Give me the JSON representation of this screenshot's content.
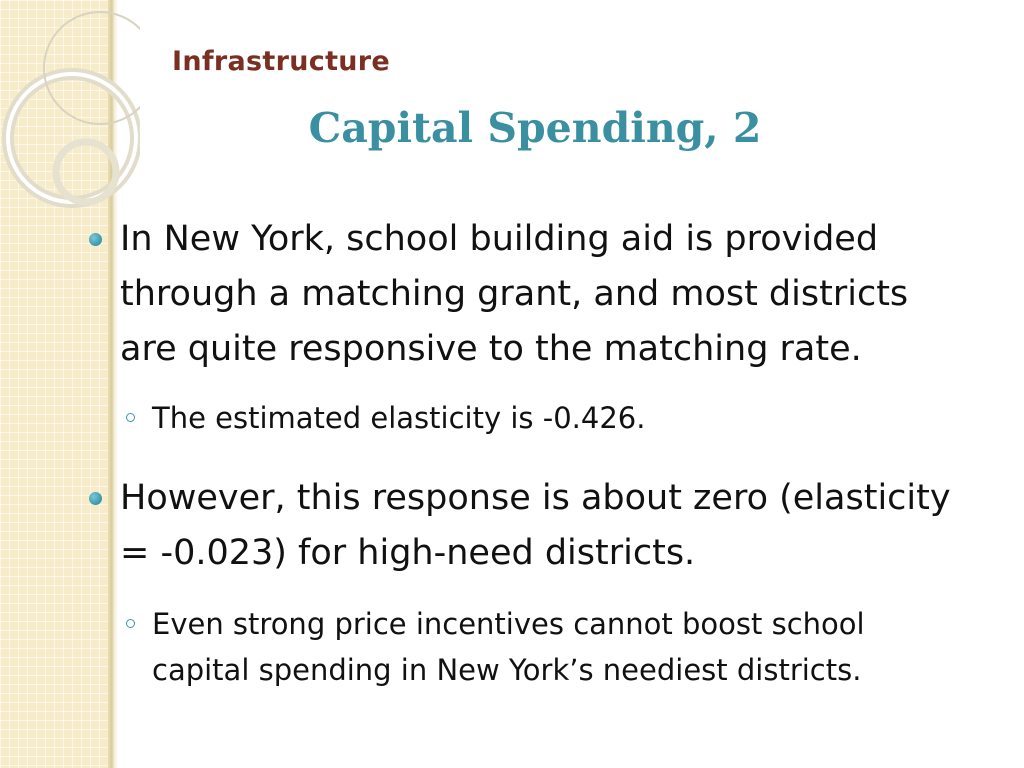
{
  "slide": {
    "section": "Infrastructure",
    "title": "Capital Spending, 2"
  },
  "bullets": [
    {
      "text": "In New York, school building aid is provided through a matching grant, and most districts are quite responsive to the matching rate.",
      "sub": "The estimated elasticity is -0.426."
    },
    {
      "text": "However, this response is about zero (elasticity = -0.023) for high-need districts.",
      "sub": "Even strong price incentives cannot boost school capital spending in New York’s neediest districts."
    }
  ],
  "colors": {
    "section_label": "#7a2f22",
    "title": "#3a8fa0",
    "bullet_accent": "#3a96a8",
    "side_panel": "#f6ecc9"
  },
  "icons": {
    "level1": "filled-circle-bullet",
    "level2": "hollow-circle-bullet"
  }
}
